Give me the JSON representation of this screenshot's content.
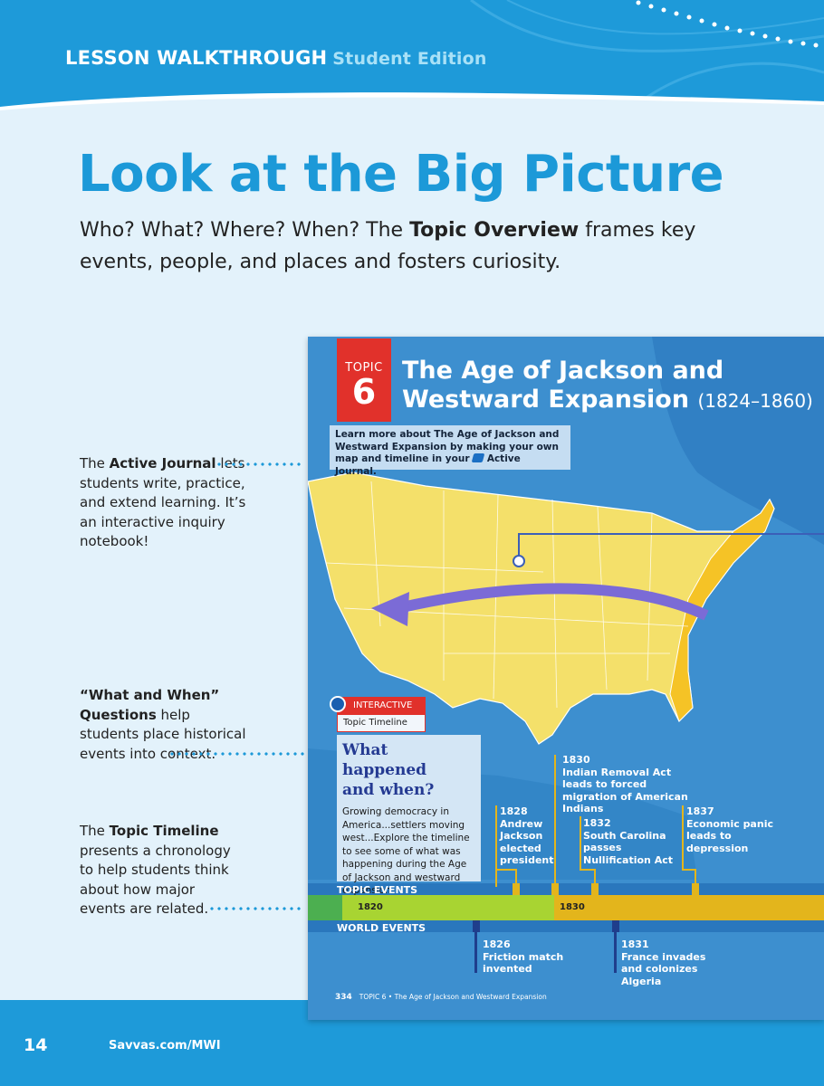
{
  "header": {
    "label": "LESSON WALKTHROUGH",
    "sublabel": "Student Edition"
  },
  "page_title": "Look at the Big Picture",
  "intro": {
    "part1": "Who? What? Where? When? The ",
    "bold": "Topic Overview",
    "part2": " frames key events, people, and places and fosters curiosity."
  },
  "callouts": {
    "journal": {
      "bold": "Active Journal",
      "pre": "The ",
      "text": " lets students write, practice, and extend learning. It’s an interactive inquiry notebook!"
    },
    "what_when": {
      "bold": "“What and When” Questions",
      "text": " help students place historical events into context."
    },
    "timeline": {
      "pre": "The ",
      "bold": "Topic Timeline",
      "text": " presents a chronology to help students think about how major events are related."
    }
  },
  "textbook": {
    "topic_word": "TOPIC",
    "topic_number": "6",
    "title_line1": "The Age of Jackson and",
    "title_line2": "Westward Expansion",
    "title_dates": "(1824–1860)",
    "learn_more": "Learn more about The Age of Jackson and Westward Expansion by making your own map and timeline in your",
    "journal_name": "Active Journal.",
    "interactive_label": "INTERACTIVE",
    "timeline_label": "Topic Timeline",
    "what_line1": "What happened",
    "what_line2": "and when?",
    "what_body": "Growing democracy in America...settlers moving west...Explore the timeline to see some of what was happening during the Age of Jackson and westward expansion.",
    "topic_events_label": "TOPIC EVENTS",
    "world_events_label": "WORLD EVENTS",
    "years": [
      "1820",
      "1830"
    ],
    "topic_events": [
      {
        "year": "1828",
        "text": "Andrew Jackson elected president"
      },
      {
        "year": "1830",
        "text": "Indian Removal Act leads to forced migration of American Indians"
      },
      {
        "year": "1832",
        "text": "South Carolina passes Nullification Act"
      },
      {
        "year": "1837",
        "text": "Economic panic leads to depression"
      }
    ],
    "world_events": [
      {
        "year": "1826",
        "text": "Friction match invented"
      },
      {
        "year": "1831",
        "text": "France invades and colonizes Algeria"
      }
    ],
    "footer_page": "334",
    "footer_text": "TOPIC 6 • The Age of Jackson and Westward Expansion"
  },
  "footer": {
    "page_number": "14",
    "site": "Savvas.com/MWI"
  },
  "colors": {
    "brand_blue": "#1c99d8",
    "topic_red": "#e1312b",
    "map_yellow": "#f4e06a",
    "ocean": "#3d8fcf",
    "timeline_green": "#8fc83a",
    "timeline_gold": "#e3b51c"
  }
}
